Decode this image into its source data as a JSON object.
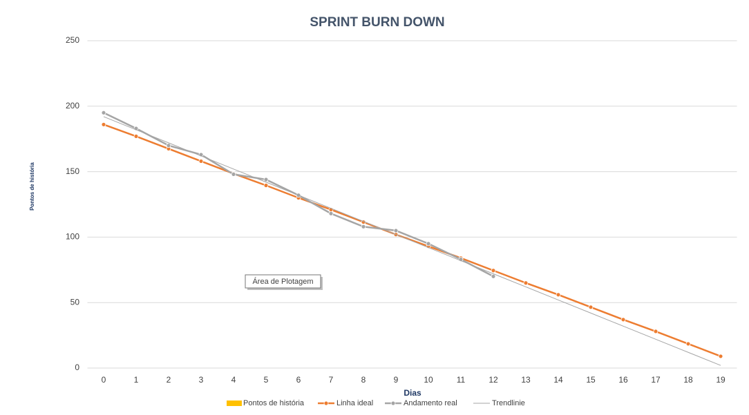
{
  "chart_data": {
    "type": "line",
    "title": "SPRINT BURN DOWN",
    "x_label": "Dias",
    "y_label": "Pontos de história",
    "categories": [
      "0",
      "1",
      "2",
      "3",
      "4",
      "5",
      "6",
      "7",
      "8",
      "9",
      "10",
      "11",
      "12",
      "13",
      "14",
      "15",
      "16",
      "17",
      "18",
      "19"
    ],
    "series": [
      {
        "name": "Pontos de história",
        "color": "#ffc000",
        "kind": "bar",
        "values": [
          null,
          null,
          null,
          null,
          null,
          null,
          null,
          null,
          null,
          null,
          null,
          null,
          null,
          null,
          null,
          null,
          null,
          null,
          null,
          null
        ]
      },
      {
        "name": "Linha ideal",
        "color": "#ed7d31",
        "kind": "line",
        "values": [
          186,
          177,
          167.5,
          158,
          148.5,
          139.5,
          130,
          121,
          111.5,
          102,
          93,
          84,
          74.5,
          65,
          56,
          46.5,
          37,
          28,
          18.5,
          9
        ]
      },
      {
        "name": "Andamento real",
        "color": "#a5a5a5",
        "kind": "line",
        "values": [
          195,
          183,
          170,
          163,
          148,
          144,
          132,
          118,
          108,
          105,
          95,
          83,
          70,
          null,
          null,
          null,
          null,
          null,
          null,
          null
        ]
      },
      {
        "name": "Trendlinie",
        "color": "#a5a5a5",
        "kind": "trend",
        "values": [
          192,
          182,
          172,
          162,
          152,
          142,
          132,
          122,
          112,
          102,
          92,
          82,
          72,
          62,
          52,
          42,
          32,
          22,
          12,
          2
        ]
      }
    ],
    "ylim": [
      0,
      250
    ],
    "yticks": [
      0,
      50,
      100,
      150,
      200,
      250
    ],
    "grid": true,
    "legend": "bottom",
    "annotation": "Área de Plotagem"
  }
}
